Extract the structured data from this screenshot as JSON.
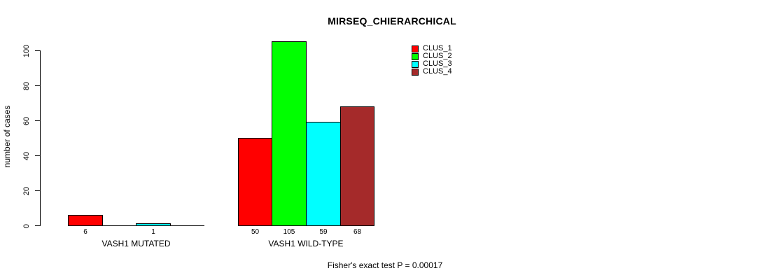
{
  "chart_data": {
    "type": "bar",
    "title": "MIRSEQ_CHIERARCHICAL",
    "ylabel": "number of cases",
    "xlabel": "",
    "ylim": [
      0,
      105
    ],
    "yticks": [
      0,
      20,
      40,
      60,
      80,
      100
    ],
    "grid": false,
    "background": "#ffffff",
    "categories": [
      "VASH1 MUTATED",
      "VASH1 WILD-TYPE"
    ],
    "series": [
      {
        "name": "CLUS_1",
        "color": "#ff0000",
        "values": [
          6,
          50
        ]
      },
      {
        "name": "CLUS_2",
        "color": "#00ff00",
        "values": [
          0,
          105
        ]
      },
      {
        "name": "CLUS_3",
        "color": "#00ffff",
        "values": [
          1,
          59
        ]
      },
      {
        "name": "CLUS_4",
        "color": "#a52a2a",
        "values": [
          0,
          68
        ]
      }
    ],
    "bar_value_labels": [
      [
        "6",
        "",
        "1",
        ""
      ],
      [
        "50",
        "105",
        "59",
        "68"
      ]
    ],
    "legend": {
      "position": "top-right",
      "entries": [
        "CLUS_1",
        "CLUS_2",
        "CLUS_3",
        "CLUS_4"
      ]
    },
    "footnote": "Fisher's exact test P = 0.00017"
  }
}
